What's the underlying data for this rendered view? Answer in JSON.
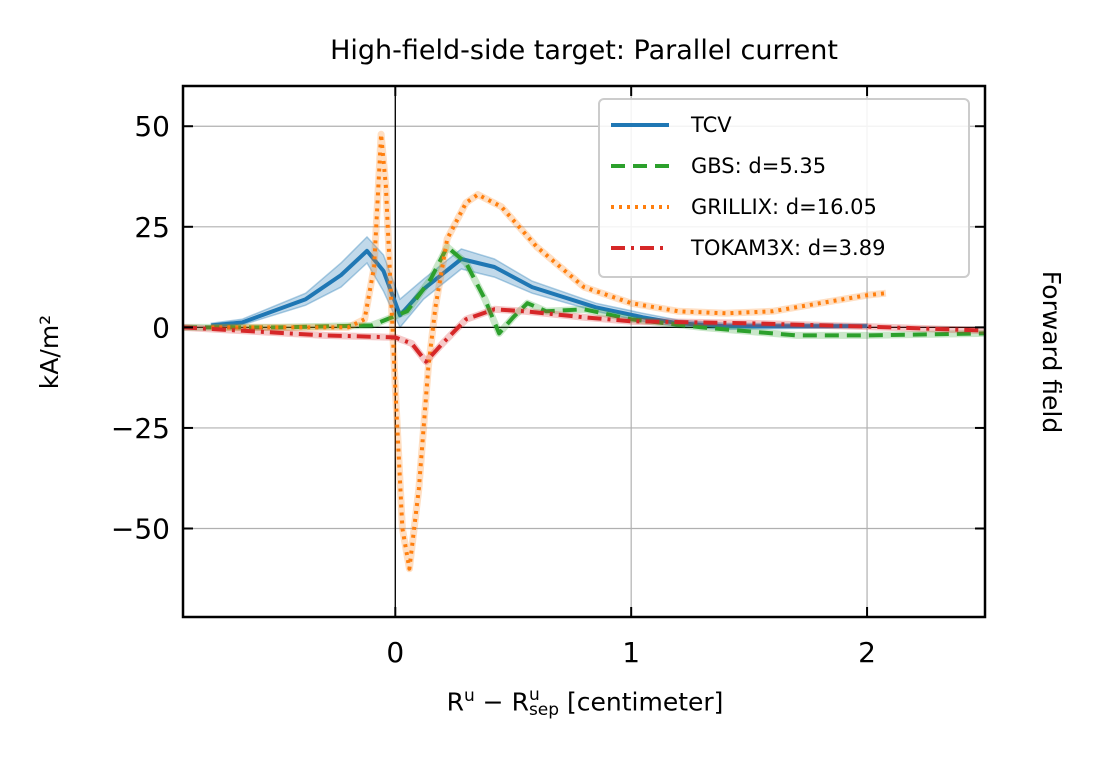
{
  "chart_data": {
    "type": "line",
    "title": "High-field-side target: Parallel current",
    "ylabel": "kA/m²",
    "xlabel": {
      "base": "R",
      "sup": "u",
      "minus": " − ",
      "sub": "sep",
      "unit": " [centimeter]"
    },
    "right_label": "Forward field",
    "xlim": [
      -0.9,
      2.5
    ],
    "ylim": [
      -72,
      60
    ],
    "xticks": [
      0,
      1,
      2
    ],
    "xtick_labels": [
      "0",
      "1",
      "2"
    ],
    "yticks": [
      50,
      25,
      0,
      -25,
      -50
    ],
    "ytick_labels": [
      "50",
      "25",
      "0",
      "−25",
      "−50"
    ],
    "grid": true,
    "legend_position": "top-right",
    "series": [
      {
        "name": "TCV",
        "color": "#1f77b4",
        "style": "solid",
        "x": [
          -0.78,
          -0.65,
          -0.38,
          -0.23,
          -0.12,
          -0.05,
          0.02,
          0.12,
          0.28,
          0.42,
          0.58,
          0.85,
          1.05,
          1.2,
          1.4,
          2.0
        ],
        "y": [
          0.5,
          1.2,
          7,
          13,
          19,
          14,
          3,
          9.5,
          17,
          15,
          10,
          5,
          2.5,
          1,
          0.3,
          0.3
        ],
        "band_lower": [
          0,
          0.6,
          5.5,
          10,
          16,
          9,
          0,
          7,
          14.5,
          12.5,
          8.5,
          4,
          1.5,
          0.2,
          -0.5,
          0
        ],
        "band_upper": [
          1,
          2,
          8.5,
          16,
          22.5,
          18,
          7,
          12,
          19.5,
          17,
          11.5,
          6,
          3.5,
          1.8,
          1,
          0.8
        ]
      },
      {
        "name": "GBS: d=5.35",
        "color": "#2ca02c",
        "style": "dashed",
        "x": [
          -0.9,
          -0.5,
          -0.1,
          0.05,
          0.15,
          0.22,
          0.3,
          0.38,
          0.44,
          0.5,
          0.56,
          0.64,
          0.8,
          1.0,
          1.3,
          1.7,
          2.0,
          2.5
        ],
        "y": [
          0,
          0,
          0.5,
          4,
          12,
          20,
          16,
          7,
          -1.5,
          2.5,
          6,
          4,
          4.5,
          2,
          0,
          -2,
          -2,
          -1.5
        ]
      },
      {
        "name": "GRILLIX: d=16.05",
        "color": "#ff7f0e",
        "style": "dotted",
        "x": [
          -0.78,
          -0.5,
          -0.2,
          -0.13,
          -0.09,
          -0.06,
          -0.04,
          0.0,
          0.03,
          0.06,
          0.1,
          0.14,
          0.17,
          0.22,
          0.3,
          0.35,
          0.45,
          0.6,
          0.8,
          1.0,
          1.2,
          1.4,
          1.6,
          1.8,
          2.0,
          2.08
        ],
        "y": [
          0,
          0,
          0,
          2,
          15,
          48,
          35,
          -15,
          -50,
          -60,
          -40,
          -10,
          5,
          22,
          31,
          33,
          30,
          20,
          10,
          6,
          4,
          3.5,
          4,
          6,
          8,
          8.5
        ]
      },
      {
        "name": "TOKAM3X: d=3.89",
        "color": "#d62728",
        "style": "dashdot",
        "x": [
          -0.9,
          -0.6,
          -0.3,
          0.0,
          0.07,
          0.13,
          0.2,
          0.3,
          0.42,
          0.55,
          0.8,
          1.0,
          1.5,
          2.0,
          2.5
        ],
        "y": [
          0,
          -1,
          -2,
          -2.5,
          -4,
          -8.5,
          -4,
          2,
          4.5,
          4,
          2.5,
          1.5,
          1,
          0.2,
          -0.8
        ]
      }
    ]
  }
}
